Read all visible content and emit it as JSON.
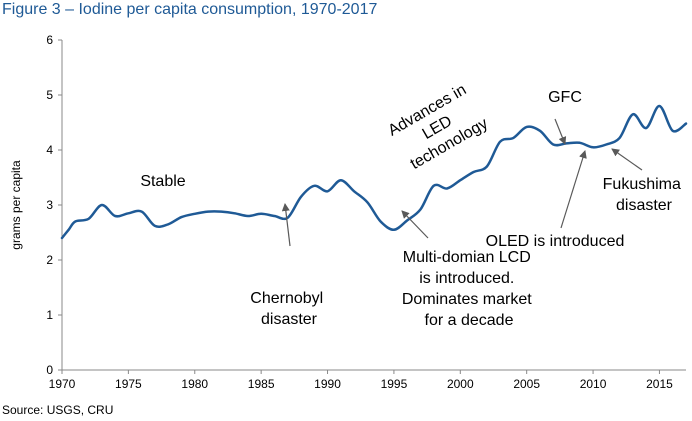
{
  "title": "Figure 3 – Iodine per capita consumption, 1970-2017",
  "source": "Source: USGS, CRU",
  "colors": {
    "title": "#1f5a96",
    "line": "#1f5a96",
    "axis": "#888888",
    "arrow": "#595959"
  },
  "chart_data": {
    "type": "line",
    "title": "Figure 3 – Iodine per capita consumption, 1970-2017",
    "xlabel": "",
    "ylabel": "grams per capita",
    "xlim": [
      1970,
      2017
    ],
    "ylim": [
      0,
      6
    ],
    "x_ticks": [
      1970,
      1975,
      1980,
      1985,
      1990,
      1995,
      2000,
      2005,
      2010,
      2015
    ],
    "y_ticks": [
      0,
      1,
      2,
      3,
      4,
      5,
      6
    ],
    "grid": false,
    "legend": "none",
    "series": [
      {
        "x": [
          1970,
          1970.5,
          1971,
          1972,
          1973,
          1974,
          1975,
          1976,
          1977,
          1978,
          1979,
          1980,
          1981,
          1982,
          1983,
          1984,
          1985,
          1986,
          1987,
          1988,
          1989,
          1990,
          1991,
          1992,
          1993,
          1994,
          1995,
          1996,
          1997,
          1998,
          1999,
          2000,
          2001,
          2002,
          2003,
          2004,
          2005,
          2006,
          2007,
          2008,
          2009,
          2010,
          2011,
          2012,
          2013,
          2014,
          2015,
          2016,
          2017
        ],
        "values": [
          2.4,
          2.55,
          2.7,
          2.75,
          3.0,
          2.8,
          2.85,
          2.88,
          2.62,
          2.65,
          2.78,
          2.84,
          2.88,
          2.88,
          2.85,
          2.8,
          2.84,
          2.8,
          2.77,
          3.15,
          3.35,
          3.25,
          3.45,
          3.25,
          3.05,
          2.7,
          2.55,
          2.72,
          2.92,
          3.35,
          3.3,
          3.45,
          3.6,
          3.7,
          4.15,
          4.22,
          4.42,
          4.35,
          4.1,
          4.12,
          4.13,
          4.05,
          4.1,
          4.22,
          4.65,
          4.4,
          4.8,
          4.35,
          4.48
        ]
      }
    ],
    "annotations": [
      {
        "text": "Stable"
      },
      {
        "text": "Chernobyl disaster",
        "lines": [
          "Chernobyl",
          "disaster"
        ],
        "x": 1987,
        "y": 2.8
      },
      {
        "text": "Multi-domian LCD is introduced. Dominates market for a decade",
        "lines": [
          "Multi-domian LCD",
          "is introduced.",
          "Dominates market",
          "for a decade"
        ],
        "x": 1995,
        "y": 2.5
      },
      {
        "text": "Advances in LED techonology",
        "lines": [
          "Advances in",
          "LED",
          "techonology"
        ]
      },
      {
        "text": "GFC",
        "x": 2007.3,
        "y": 4.15
      },
      {
        "text": "OLED is introduced",
        "x": 2009,
        "y": 4.13
      },
      {
        "text": "Fukushima disaster",
        "lines": [
          "Fukushima",
          "disaster"
        ],
        "x": 2011,
        "y": 4.1
      }
    ]
  }
}
